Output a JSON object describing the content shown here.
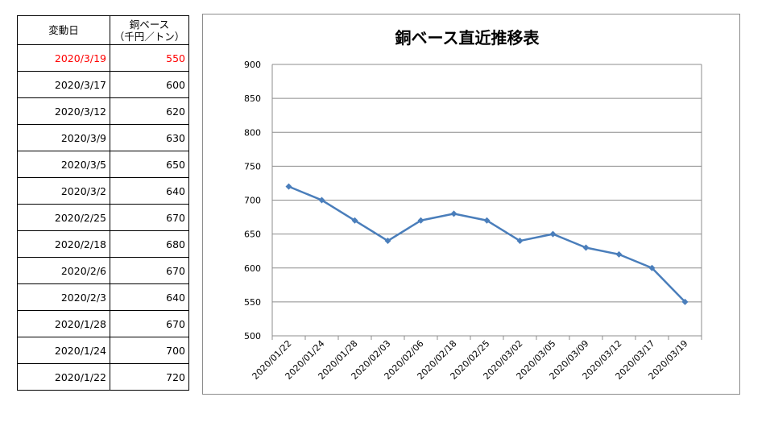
{
  "table": {
    "header": {
      "date": "変動日",
      "price_line1": "銅ベース",
      "price_line2": "（千円／トン）"
    },
    "rows": [
      {
        "date": "2020/3/19",
        "value": "550",
        "highlight": true
      },
      {
        "date": "2020/3/17",
        "value": "600"
      },
      {
        "date": "2020/3/12",
        "value": "620"
      },
      {
        "date": "2020/3/9",
        "value": "630"
      },
      {
        "date": "2020/3/5",
        "value": "650"
      },
      {
        "date": "2020/3/2",
        "value": "640"
      },
      {
        "date": "2020/2/25",
        "value": "670"
      },
      {
        "date": "2020/2/18",
        "value": "680"
      },
      {
        "date": "2020/2/6",
        "value": "670"
      },
      {
        "date": "2020/2/3",
        "value": "640"
      },
      {
        "date": "2020/1/28",
        "value": "670"
      },
      {
        "date": "2020/1/24",
        "value": "700"
      },
      {
        "date": "2020/1/22",
        "value": "720"
      }
    ],
    "highlight_color": "#ff0000"
  },
  "chart_data": {
    "type": "line",
    "title": "銅ベース直近推移表",
    "categories": [
      "2020/01/22",
      "2020/01/24",
      "2020/01/28",
      "2020/02/03",
      "2020/02/06",
      "2020/02/18",
      "2020/02/25",
      "2020/03/02",
      "2020/03/05",
      "2020/03/09",
      "2020/03/12",
      "2020/03/17",
      "2020/03/19"
    ],
    "series": [
      {
        "values": [
          720,
          700,
          670,
          640,
          670,
          680,
          670,
          640,
          650,
          630,
          620,
          600,
          550
        ],
        "color": "#4a7ebb",
        "marker": "diamond"
      }
    ],
    "ylim": [
      500,
      900
    ],
    "yticks": [
      500,
      550,
      600,
      650,
      700,
      750,
      800,
      850,
      900
    ],
    "grid": true,
    "legend": "none",
    "xlabel": "",
    "ylabel": ""
  }
}
